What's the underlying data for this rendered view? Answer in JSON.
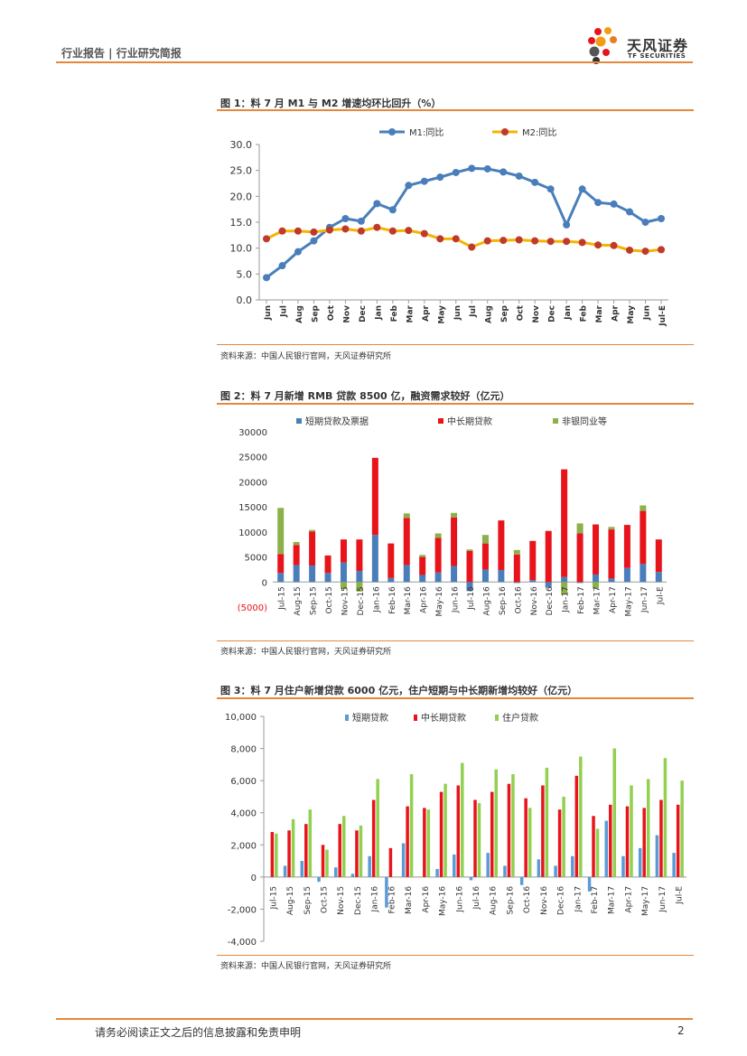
{
  "header": {
    "breadcrumb": "行业报告 | 行业研究简报",
    "logo_cn": "天风证券",
    "logo_en": "TF SECURITIES"
  },
  "figures": [
    {
      "title": "图 1：料 7 月 M1 与 M2 增速均环比回升（%）",
      "source": "资料来源：中国人民银行官网，天风证券研究所"
    },
    {
      "title": "图 2：料 7 月新增 RMB 贷款 8500 亿，融资需求较好（亿元）",
      "source": "资料来源：中国人民银行官网，天风证券研究所"
    },
    {
      "title": "图 3：料 7 月住户新增贷款 6000 亿元，住户短期与中长期新增均较好（亿元）",
      "source": "资料来源：中国人民银行官网，天风证券研究所"
    }
  ],
  "footer": {
    "disclaimer": "请务必阅读正文之后的信息披露和免责申明",
    "page": "2"
  },
  "chart_data": [
    {
      "type": "line",
      "categories": [
        "Jun-15",
        "Jul-15",
        "Aug-15",
        "Sep-15",
        "Oct-15",
        "Nov-15",
        "Dec-15",
        "Jan-16",
        "Feb-16",
        "Mar-16",
        "Apr-16",
        "May-16",
        "Jun-16",
        "Jul-16",
        "Aug-16",
        "Sep-16",
        "Oct-16",
        "Nov-16",
        "Dec-16",
        "Jan-17",
        "Feb-17",
        "Mar-17",
        "Apr-17",
        "May-17",
        "Jun-17",
        "Jul-E"
      ],
      "tick_labels": [
        "Jun",
        "Jul",
        "Aug",
        "Sep",
        "Oct",
        "Nov",
        "Dec",
        "Jan",
        "Feb",
        "Mar",
        "Apr",
        "May",
        "Jun",
        "Jul",
        "Aug",
        "Sep",
        "Oct",
        "Nov",
        "Dec",
        "Jan",
        "Feb",
        "Mar",
        "Apr",
        "May",
        "Jun",
        "Jul-E"
      ],
      "series": [
        {
          "name": "M1:同比",
          "color": "#4a7ebb",
          "values": [
            4.3,
            6.6,
            9.3,
            11.4,
            14.0,
            15.7,
            15.2,
            18.6,
            17.4,
            22.1,
            22.9,
            23.7,
            24.6,
            25.4,
            25.3,
            24.7,
            23.9,
            22.7,
            21.4,
            14.5,
            21.4,
            18.8,
            18.5,
            17.0,
            15.0,
            15.7
          ]
        },
        {
          "name": "M2:同比",
          "color": "#f4b400",
          "marker_color": "#c0392b",
          "values": [
            11.8,
            13.3,
            13.3,
            13.1,
            13.5,
            13.7,
            13.3,
            14.0,
            13.3,
            13.4,
            12.8,
            11.8,
            11.8,
            10.2,
            11.4,
            11.5,
            11.6,
            11.4,
            11.3,
            11.3,
            11.1,
            10.6,
            10.5,
            9.6,
            9.4,
            9.7
          ]
        }
      ],
      "ylim": [
        0,
        30
      ],
      "yticks": [
        "0.0",
        "5.0",
        "10.0",
        "15.0",
        "20.0",
        "25.0",
        "30.0"
      ],
      "legend": "top-center"
    },
    {
      "type": "bar",
      "stacked": true,
      "categories": [
        "Jul-15",
        "Aug-15",
        "Sep-15",
        "Oct-15",
        "Nov-15",
        "Dec-15",
        "Jan-16",
        "Feb-16",
        "Mar-16",
        "Apr-16",
        "May-16",
        "Jun-16",
        "Jul-16",
        "Aug-16",
        "Sep-16",
        "Oct-16",
        "Nov-16",
        "Dec-16",
        "Jan-17",
        "Feb-17",
        "Mar-17",
        "Apr-17",
        "May-17",
        "Jun-17",
        "Jul-E"
      ],
      "series": [
        {
          "name": "短期贷款及票据",
          "color": "#4a7ebb",
          "values": [
            1800,
            3400,
            3300,
            1800,
            3900,
            2200,
            9400,
            800,
            3400,
            1400,
            1900,
            3200,
            -1800,
            2500,
            2400,
            -200,
            400,
            -1100,
            1000,
            -200,
            1500,
            700,
            2800,
            3600,
            2000
          ]
        },
        {
          "name": "中长期贷款",
          "color": "#e8141b",
          "values": [
            3800,
            4000,
            6800,
            3500,
            4600,
            6300,
            15400,
            6900,
            9400,
            3600,
            6900,
            9700,
            6200,
            5200,
            9900,
            5500,
            7800,
            10200,
            21500,
            9700,
            10000,
            9800,
            8600,
            10600,
            6500
          ]
        },
        {
          "name": "非银同业等",
          "color": "#8db04a",
          "values": [
            9200,
            600,
            300,
            0,
            -1400,
            -1900,
            0,
            0,
            900,
            400,
            900,
            900,
            300,
            1700,
            0,
            900,
            0,
            0,
            -2500,
            2000,
            -1300,
            500,
            0,
            1100,
            0
          ]
        }
      ],
      "ylim": [
        -5000,
        30000
      ],
      "yticks": [
        "(5000)",
        "0",
        "5000",
        "10000",
        "15000",
        "20000",
        "25000",
        "30000"
      ],
      "legend": "top-center"
    },
    {
      "type": "bar",
      "categories": [
        "Jul-15",
        "Aug-15",
        "Sep-15",
        "Oct-15",
        "Nov-15",
        "Dec-15",
        "Jan-16",
        "Feb-16",
        "Mar-16",
        "Apr-16",
        "May-16",
        "Jun-16",
        "Jul-16",
        "Aug-16",
        "Sep-16",
        "Oct-16",
        "Nov-16",
        "Dec-16",
        "Jan-17",
        "Feb-17",
        "Mar-17",
        "Apr-17",
        "May-17",
        "Jun-17",
        "Jul-E"
      ],
      "series": [
        {
          "name": "短期贷款",
          "color": "#5b9bd5",
          "values": [
            0,
            700,
            1000,
            -300,
            600,
            200,
            1300,
            -1900,
            2100,
            0,
            500,
            1400,
            -200,
            1500,
            700,
            -500,
            1100,
            700,
            1300,
            -900,
            3500,
            1300,
            1800,
            2600,
            1500
          ]
        },
        {
          "name": "中长期贷款",
          "color": "#e8141b",
          "values": [
            2800,
            2900,
            3300,
            2000,
            3300,
            2900,
            4800,
            1800,
            4400,
            4300,
            5300,
            5700,
            4800,
            5300,
            5800,
            4900,
            5700,
            4200,
            6300,
            3800,
            4500,
            4400,
            4300,
            4800,
            4500
          ]
        },
        {
          "name": "住户贷款",
          "color": "#92d050",
          "values": [
            2700,
            3600,
            4200,
            1700,
            3800,
            3200,
            6100,
            0,
            6400,
            4200,
            5800,
            7100,
            4600,
            6700,
            6400,
            4300,
            6800,
            5000,
            7500,
            3000,
            8000,
            5700,
            6100,
            7400,
            6000
          ]
        }
      ],
      "ylim": [
        -4000,
        10000
      ],
      "yticks": [
        "-4,000",
        "-2,000",
        "0",
        "2,000",
        "4,000",
        "6,000",
        "8,000",
        "10,000"
      ],
      "legend": "top-center"
    }
  ]
}
